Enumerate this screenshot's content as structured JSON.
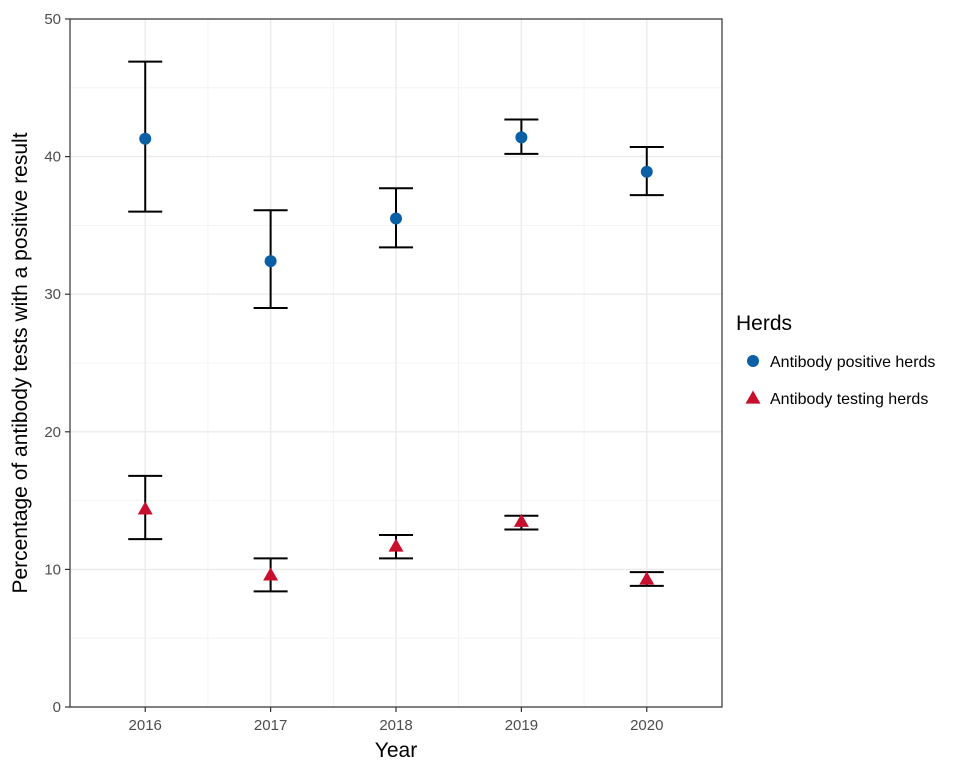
{
  "chart_data": {
    "type": "scatter",
    "title": "",
    "xlabel": "Year",
    "ylabel": "Percentage of antibody tests with a positive result",
    "categories": [
      "2016",
      "2017",
      "2018",
      "2019",
      "2020"
    ],
    "ylim": [
      0,
      50
    ],
    "yticks": [
      0,
      10,
      20,
      30,
      40,
      50
    ],
    "grid": true,
    "legend": {
      "title": "Herds",
      "placement": "right"
    },
    "series": [
      {
        "name": "Antibody positive herds",
        "marker": "circle",
        "color": "#0b5fa5",
        "values": [
          41.3,
          32.4,
          35.5,
          41.4,
          38.9
        ],
        "lower": [
          36.0,
          29.0,
          33.4,
          40.2,
          37.2
        ],
        "upper": [
          46.9,
          36.1,
          37.7,
          42.7,
          40.7
        ]
      },
      {
        "name": "Antibody testing herds",
        "marker": "triangle",
        "color": "#c8102e",
        "values": [
          14.4,
          9.6,
          11.7,
          13.5,
          9.3
        ],
        "lower": [
          12.2,
          8.4,
          10.8,
          12.9,
          8.8
        ],
        "upper": [
          16.8,
          10.8,
          12.5,
          13.9,
          9.8
        ]
      }
    ]
  }
}
